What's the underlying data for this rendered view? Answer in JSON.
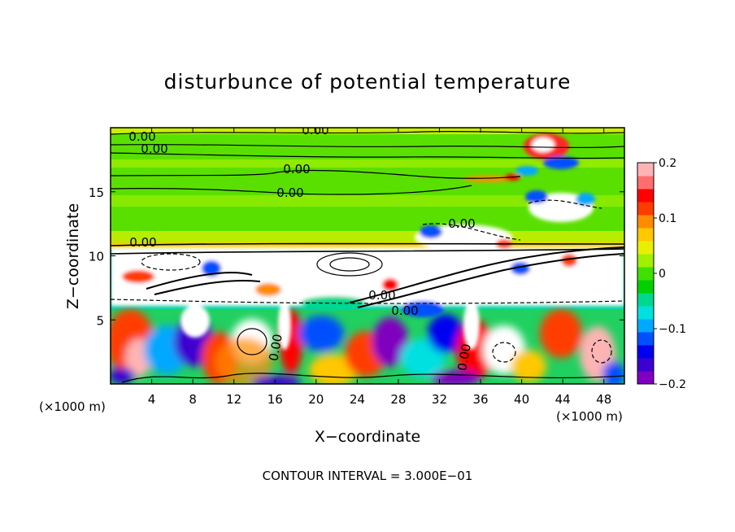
{
  "chart_data": {
    "type": "heatmap",
    "title": "disturbunce of potential temperature",
    "xlabel": "X−coordinate",
    "ylabel": "Z−coordinate",
    "x_unit": "(×1000 m)",
    "z_unit": "(×1000 m)",
    "xlim": [
      0,
      50
    ],
    "zlim": [
      0,
      20
    ],
    "x_ticks": [
      "4",
      "8",
      "12",
      "16",
      "20",
      "24",
      "28",
      "32",
      "36",
      "40",
      "44",
      "48"
    ],
    "z_ticks": [
      "5",
      "10",
      "15"
    ],
    "colorbar": {
      "range": [
        -0.2,
        0.2
      ],
      "tick_labels": [
        "0.2",
        "0.1",
        "0",
        "−0.1",
        "−0.2"
      ],
      "colors": [
        "#7f00bf",
        "#3c00d0",
        "#0000f0",
        "#0050ff",
        "#00a8ff",
        "#00e0e0",
        "#00d890",
        "#00d000",
        "#40e000",
        "#a0f000",
        "#e8f000",
        "#ffc800",
        "#ff8c00",
        "#ff3c00",
        "#ff0000",
        "#ff6e6e",
        "#ffb4b4"
      ]
    },
    "contour_labels": [
      "0.00",
      "0.00",
      "0.00",
      "0.00",
      "0.00",
      "0.00",
      "0.00",
      "0.00",
      "0.00",
      "0.00",
      "0.00"
    ],
    "footer": "CONTOUR INTERVAL = 3.000E−01"
  }
}
